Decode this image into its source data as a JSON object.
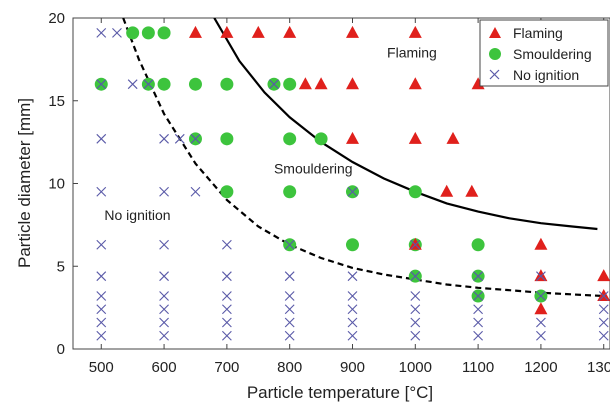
{
  "chart_data": {
    "type": "scatter",
    "xlabel": "Particle temperature [°C]",
    "ylabel": "Particle diameter [mm]",
    "xlim": [
      455,
      1310
    ],
    "ylim": [
      0,
      20
    ],
    "xticks": [
      500,
      600,
      700,
      800,
      900,
      1000,
      1100,
      1200,
      1300
    ],
    "yticks": [
      0,
      5,
      10,
      15,
      20
    ],
    "grid": false,
    "legend_position": "top-right",
    "colors": {
      "flaming": "#e0201c",
      "smouldering": "#3dc43d",
      "no_ignition": "#5a5aa8",
      "line": "#000000"
    },
    "series": [
      {
        "name": "Flaming",
        "marker": "triangle",
        "points": [
          [
            650,
            19.1
          ],
          [
            700,
            19.1
          ],
          [
            750,
            19.1
          ],
          [
            800,
            19.1
          ],
          [
            900,
            19.1
          ],
          [
            1000,
            19.1
          ],
          [
            825,
            16
          ],
          [
            850,
            16
          ],
          [
            900,
            16
          ],
          [
            1000,
            16
          ],
          [
            1100,
            16
          ],
          [
            900,
            12.7
          ],
          [
            1000,
            12.7
          ],
          [
            1060,
            12.7
          ],
          [
            1050,
            9.5
          ],
          [
            1090,
            9.5
          ],
          [
            1000,
            6.3
          ],
          [
            1200,
            6.3
          ],
          [
            1200,
            4.4
          ],
          [
            1300,
            4.4
          ],
          [
            1300,
            3.2
          ],
          [
            1200,
            2.4
          ]
        ]
      },
      {
        "name": "Smouldering",
        "marker": "circle",
        "points": [
          [
            550,
            19.1
          ],
          [
            575,
            19.1
          ],
          [
            600,
            19.1
          ],
          [
            500,
            16
          ],
          [
            575,
            16
          ],
          [
            600,
            16
          ],
          [
            650,
            16
          ],
          [
            700,
            16
          ],
          [
            775,
            16
          ],
          [
            800,
            16
          ],
          [
            650,
            12.7
          ],
          [
            700,
            12.7
          ],
          [
            800,
            12.7
          ],
          [
            850,
            12.7
          ],
          [
            700,
            9.5
          ],
          [
            800,
            9.5
          ],
          [
            900,
            9.5
          ],
          [
            1000,
            9.5
          ],
          [
            800,
            6.3
          ],
          [
            900,
            6.3
          ],
          [
            1000,
            6.3
          ],
          [
            1100,
            6.3
          ],
          [
            1000,
            4.4
          ],
          [
            1100,
            4.4
          ],
          [
            1100,
            3.2
          ],
          [
            1200,
            3.2
          ]
        ]
      },
      {
        "name": "No ignition",
        "marker": "cross",
        "points": [
          [
            500,
            19.1
          ],
          [
            525,
            19.1
          ],
          [
            500,
            16
          ],
          [
            550,
            16
          ],
          [
            575,
            16
          ],
          [
            775,
            16
          ],
          [
            500,
            12.7
          ],
          [
            600,
            12.7
          ],
          [
            625,
            12.7
          ],
          [
            650,
            12.7
          ],
          [
            500,
            9.5
          ],
          [
            600,
            9.5
          ],
          [
            650,
            9.5
          ],
          [
            900,
            9.5
          ],
          [
            500,
            6.3
          ],
          [
            600,
            6.3
          ],
          [
            700,
            6.3
          ],
          [
            800,
            6.3
          ],
          [
            1000,
            6.3
          ],
          [
            500,
            4.4
          ],
          [
            600,
            4.4
          ],
          [
            700,
            4.4
          ],
          [
            800,
            4.4
          ],
          [
            900,
            4.4
          ],
          [
            1000,
            4.4
          ],
          [
            1100,
            4.4
          ],
          [
            1200,
            4.4
          ],
          [
            500,
            3.2
          ],
          [
            600,
            3.2
          ],
          [
            700,
            3.2
          ],
          [
            800,
            3.2
          ],
          [
            900,
            3.2
          ],
          [
            1000,
            3.2
          ],
          [
            1100,
            3.2
          ],
          [
            1200,
            3.2
          ],
          [
            1300,
            3.2
          ],
          [
            500,
            2.4
          ],
          [
            600,
            2.4
          ],
          [
            700,
            2.4
          ],
          [
            800,
            2.4
          ],
          [
            900,
            2.4
          ],
          [
            1000,
            2.4
          ],
          [
            1100,
            2.4
          ],
          [
            1300,
            2.4
          ],
          [
            500,
            1.6
          ],
          [
            600,
            1.6
          ],
          [
            700,
            1.6
          ],
          [
            800,
            1.6
          ],
          [
            900,
            1.6
          ],
          [
            1000,
            1.6
          ],
          [
            1100,
            1.6
          ],
          [
            1200,
            1.6
          ],
          [
            1300,
            1.6
          ],
          [
            500,
            0.8
          ],
          [
            600,
            0.8
          ],
          [
            700,
            0.8
          ],
          [
            800,
            0.8
          ],
          [
            900,
            0.8
          ],
          [
            1000,
            0.8
          ],
          [
            1100,
            0.8
          ],
          [
            1200,
            0.8
          ],
          [
            1300,
            0.8
          ]
        ]
      }
    ],
    "boundaries": [
      {
        "style": "solid",
        "points": [
          [
            680,
            20
          ],
          [
            720,
            17.4
          ],
          [
            760,
            15.5
          ],
          [
            800,
            14
          ],
          [
            850,
            12.5
          ],
          [
            900,
            11.3
          ],
          [
            950,
            10.3
          ],
          [
            1000,
            9.5
          ],
          [
            1050,
            8.8
          ],
          [
            1100,
            8.3
          ],
          [
            1150,
            7.9
          ],
          [
            1200,
            7.6
          ],
          [
            1250,
            7.4
          ],
          [
            1290,
            7.25
          ]
        ]
      },
      {
        "style": "dashed",
        "points": [
          [
            535,
            20
          ],
          [
            560,
            17.5
          ],
          [
            600,
            14.2
          ],
          [
            650,
            11.2
          ],
          [
            700,
            9
          ],
          [
            750,
            7.4
          ],
          [
            800,
            6.3
          ],
          [
            850,
            5.5
          ],
          [
            900,
            4.9
          ],
          [
            950,
            4.5
          ],
          [
            1000,
            4.2
          ],
          [
            1050,
            3.9
          ],
          [
            1100,
            3.7
          ],
          [
            1150,
            3.55
          ],
          [
            1200,
            3.4
          ],
          [
            1250,
            3.3
          ],
          [
            1300,
            3.2
          ]
        ]
      }
    ],
    "annotations": [
      {
        "text": "Flaming",
        "x": 955,
        "y": 17.6
      },
      {
        "text": "Smouldering",
        "x": 775,
        "y": 10.6
      },
      {
        "text": "No ignition",
        "x": 505,
        "y": 7.8
      }
    ]
  }
}
